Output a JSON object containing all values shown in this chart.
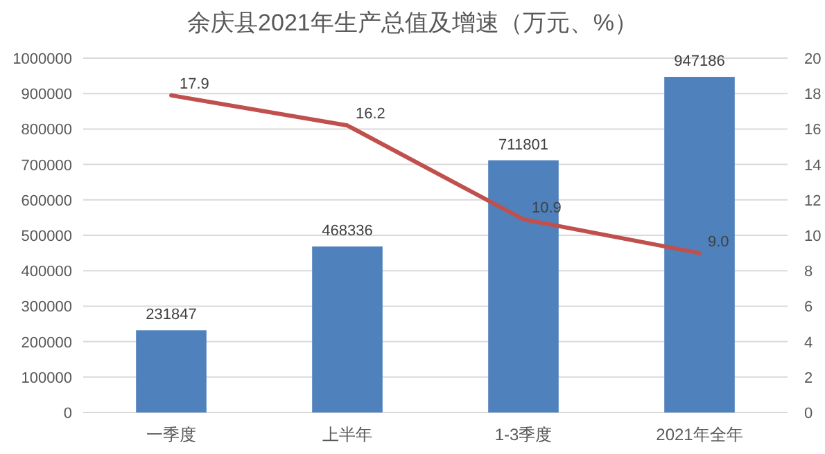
{
  "chart_data": {
    "type": "bar",
    "title": "余庆县2021年生产总值及增速（万元、%）",
    "categories": [
      "一季度",
      "上半年",
      "1-3季度",
      "2021年全年"
    ],
    "series": [
      {
        "color": "#4f81bd",
        "values": [
          231847,
          468336,
          711801,
          947186
        ]
      },
      {
        "type": "line",
        "axis": "y2",
        "color": "#c0504d",
        "values": [
          17.9,
          16.2,
          10.9,
          9.0
        ],
        "value_labels": [
          "17.9",
          "16.2",
          "10.9",
          "9.0"
        ]
      }
    ],
    "ylim": [
      0,
      1000000
    ],
    "yticks": [
      0,
      100000,
      200000,
      300000,
      400000,
      500000,
      600000,
      700000,
      800000,
      900000,
      1000000
    ],
    "y2lim": [
      0,
      20
    ],
    "y2ticks": [
      0,
      2,
      4,
      6,
      8,
      10,
      12,
      14,
      16,
      18,
      20
    ],
    "grid": "y",
    "data_labels": true
  }
}
